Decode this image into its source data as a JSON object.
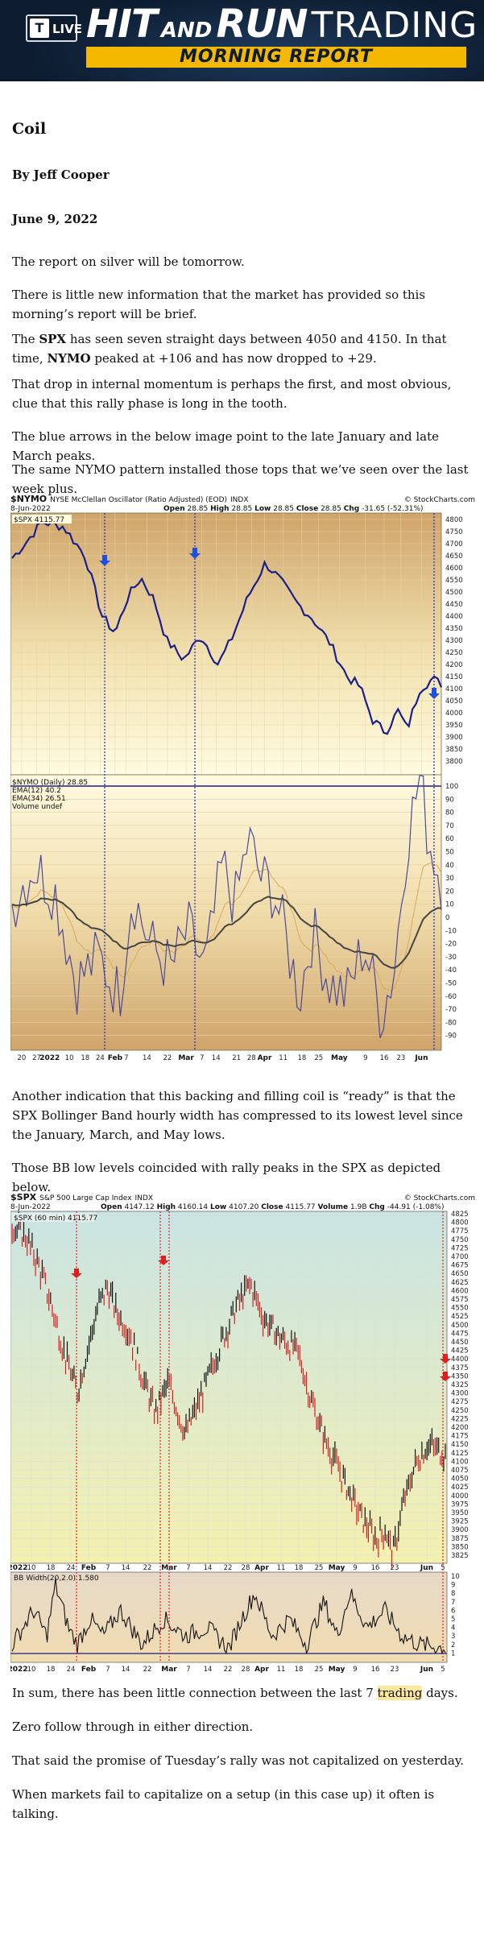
{
  "banner": {
    "logo_letter": "T",
    "logo_live": "LIVE",
    "title_hit": "HIT",
    "title_and": "AND",
    "title_run": "RUN",
    "title_trading": "TRADING",
    "subtitle": "MORNING REPORT",
    "colors": {
      "background": "#0c1b2e",
      "accent": "#f5b800"
    }
  },
  "article": {
    "title": "Coil",
    "author": "By Jeff Cooper",
    "date": "June 9, 2022",
    "p1": "The report on silver will be tomorrow.",
    "p2": "There is little new information that the market has provided so this morning’s report will be brief.",
    "p3_a": "The ",
    "p3_spx": "SPX",
    "p3_b": " has seen seven straight days between 4050 and 4150. In that time, ",
    "p3_nymo": "NYMO",
    "p3_c": " peaked at +106 and has now dropped to +29.",
    "p4": "That drop in internal momentum is perhaps the first, and most obvious, clue that this rally phase is long in the tooth.",
    "p5": "The blue arrows in the below image point to the late January and late March peaks.",
    "p6": "The same NYMO pattern installed those tops that we’ve seen over the last week plus.",
    "p7": "Another indication that this backing and filling coil is “ready” is that the SPX Bollinger Band hourly width has compressed to its lowest level since the January, March, and May lows.",
    "p8": "Those BB low levels coincided with rally peaks in the SPX as depicted below.",
    "p9_a": "In sum, there has been little connection between the last 7 ",
    "p9_hl": "trading",
    "p9_b": " days.",
    "p10": "Zero follow through in either direction.",
    "p11": "That said the promise of Tuesday’s rally was not capitalized on yesterday.",
    "p12": "When markets fail to capitalize on a setup (in this case up) it often is talking."
  },
  "chart1": {
    "symbol": "$NYMO",
    "name": "NYSE McClellan Oscillator (Ratio Adjusted) (EOD)",
    "exchange": "INDX",
    "source": "© StockCharts.com",
    "date": "8-Jun-2022",
    "open_label": "Open",
    "open": "28.85",
    "high_label": "High",
    "high": "28.85",
    "low_label": "Low",
    "low": "28.85",
    "close_label": "Close",
    "close": "28.85",
    "chg_label": "Chg",
    "chg": "-31.65 (-52.31%)",
    "top_legend": "$SPX 4115.77",
    "bottom_legend": [
      "$NYMO (Daily) 28.85",
      "EMA(12) 40.2",
      "EMA(34) 26.51",
      "Volume undef"
    ],
    "x_labels": [
      "20",
      "27",
      "2022",
      "10",
      "18",
      "24",
      "Feb",
      "7",
      "14",
      "22",
      "Mar",
      "7",
      "14",
      "21",
      "28",
      "Apr",
      "11",
      "18",
      "25",
      "May",
      "9",
      "16",
      "23",
      "Jun"
    ],
    "top_y_labels": [
      "4800",
      "4750",
      "4700",
      "4650",
      "4600",
      "4550",
      "4500",
      "4450",
      "4400",
      "4350",
      "4300",
      "4250",
      "4200",
      "4150",
      "4100",
      "4050",
      "4000",
      "3950",
      "3900",
      "3850",
      "3800"
    ],
    "bottom_y_labels": [
      "100",
      "90",
      "80",
      "70",
      "60",
      "50",
      "40",
      "30",
      "20",
      "10",
      "0",
      "-10",
      "-20",
      "-30",
      "-40",
      "-50",
      "-60",
      "-70",
      "-80",
      "-90"
    ],
    "colors": {
      "price": "#1a1f8c",
      "arrow": "#1e50e0",
      "guide": "#2233cc"
    }
  },
  "chart2": {
    "symbol": "$SPX",
    "name": "S&P 500 Large Cap Index",
    "exchange": "INDX",
    "source": "© StockCharts.com",
    "date": "8-Jun-2022",
    "open_label": "Open",
    "open": "4147.12",
    "high_label": "High",
    "high": "4160.14",
    "low_label": "Low",
    "low": "4107.20",
    "close_label": "Close",
    "close": "4115.77",
    "volume_label": "Volume",
    "volume": "1.9B",
    "chg_label": "Chg",
    "chg": "-44.91 (-1.08%)",
    "top_legend": "$SPX (60 min) 4115.77",
    "bottom_legend": "BB Width(20,2.0) 1.580",
    "x_labels": [
      "2022",
      "10",
      "18",
      "24",
      "Feb",
      "7",
      "14",
      "22",
      "Mar",
      "7",
      "14",
      "22",
      "28",
      "Apr",
      "11",
      "18",
      "25",
      "May",
      "9",
      "16",
      "23",
      "Jun",
      "5"
    ],
    "top_y_labels": [
      "4825",
      "4800",
      "4775",
      "4750",
      "4725",
      "4700",
      "4675",
      "4650",
      "4625",
      "4600",
      "4575",
      "4550",
      "4525",
      "4500",
      "4475",
      "4450",
      "4425",
      "4400",
      "4375",
      "4350",
      "4325",
      "4300",
      "4275",
      "4250",
      "4225",
      "4200",
      "4175",
      "4150",
      "4125",
      "4100",
      "4075",
      "4050",
      "4025",
      "4000",
      "3975",
      "3950",
      "3925",
      "3900",
      "3875",
      "3850",
      "3825"
    ],
    "bottom_y_labels": [
      "10",
      "9",
      "8",
      "7",
      "6",
      "5",
      "4",
      "3",
      "2",
      "1"
    ],
    "colors": {
      "price": "#111111",
      "down": "#d41f1f",
      "arrow": "#e0201f"
    }
  }
}
